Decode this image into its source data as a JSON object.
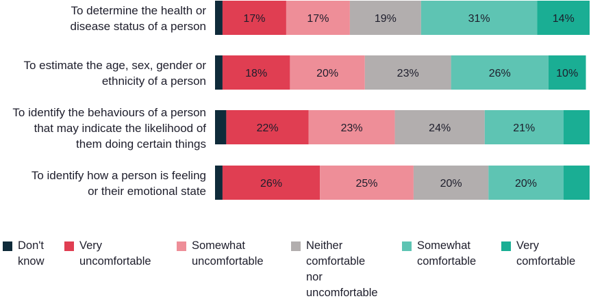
{
  "chart_data": {
    "type": "bar",
    "orientation": "horizontal",
    "stacked": true,
    "title": "",
    "xlabel": "",
    "ylabel": "",
    "xlim": [
      0,
      100
    ],
    "categories": [
      "To determine the health or disease status of a person",
      "To estimate the age, sex, gender or ethnicity of a person",
      "To identify the behaviours of a person that may indicate the likelihood of them doing certain things",
      "To identify how a person is feeling or their emotional state"
    ],
    "category_lines": [
      [
        "To determine the health or",
        "disease status of a person"
      ],
      [
        "To estimate the age, sex, gender or",
        "ethnicity of a person"
      ],
      [
        "To identify the behaviours of a person",
        "that may indicate the likelihood of",
        "them doing certain things"
      ],
      [
        "To identify how a person is feeling",
        "or their emotional state"
      ]
    ],
    "series": [
      {
        "name": "Don't know",
        "color": "#0f2b3a",
        "values": [
          2,
          2,
          3,
          2
        ]
      },
      {
        "name": "Very uncomfortable",
        "color": "#e03e52",
        "values": [
          17,
          18,
          22,
          26
        ]
      },
      {
        "name": "Somewhat uncomfortable",
        "color": "#ee8e98",
        "values": [
          17,
          20,
          23,
          25
        ]
      },
      {
        "name": "Neither comfortable nor uncomfortable",
        "color": "#b2aeae",
        "values": [
          19,
          23,
          24,
          20
        ]
      },
      {
        "name": "Somewhat comfortable",
        "color": "#5ec4b3",
        "values": [
          31,
          26,
          21,
          20
        ]
      },
      {
        "name": "Very comfortable",
        "color": "#1aae94",
        "values": [
          14,
          10,
          7,
          7
        ]
      }
    ],
    "data_labels": [
      [
        null,
        "17%",
        "17%",
        "19%",
        "31%",
        "14%"
      ],
      [
        null,
        "18%",
        "20%",
        "23%",
        "26%",
        "10%"
      ],
      [
        null,
        "22%",
        "23%",
        "24%",
        "21%",
        null
      ],
      [
        null,
        "26%",
        "25%",
        "20%",
        "20%",
        null
      ]
    ],
    "legend_position": "bottom",
    "legend_labels": [
      "Don't\nknow",
      "Very\nuncomfortable",
      "Somewhat\nuncomfortable",
      "Neither\ncomfortable nor\nuncomfortable",
      "Somewhat\ncomfortable",
      "Very\ncomfortable"
    ],
    "grid": false
  }
}
